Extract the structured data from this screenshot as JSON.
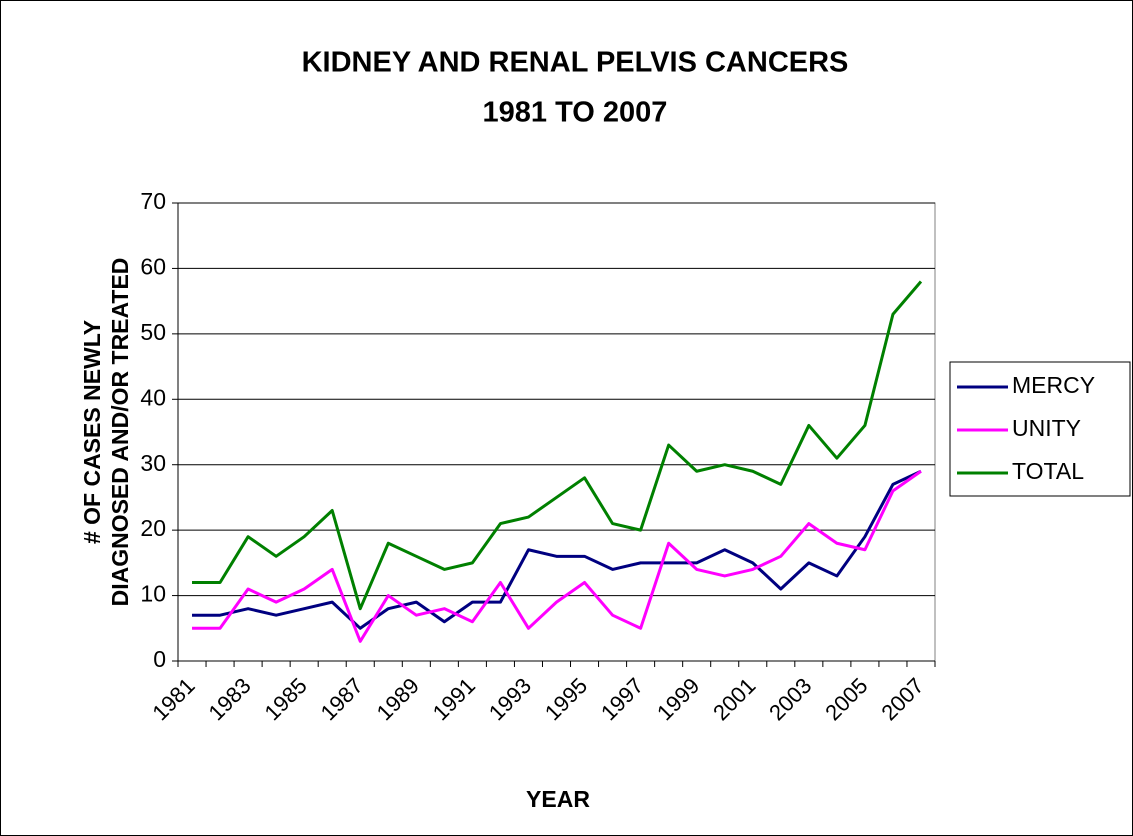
{
  "chart_data": {
    "type": "line",
    "title": "KIDNEY AND RENAL PELVIS CANCERS",
    "subtitle": "1981 TO 2007",
    "x_label": "YEAR",
    "y_label": [
      "# OF CASES NEWLY",
      "DIAGNOSED AND/OR TREATED"
    ],
    "categories": [
      "1981",
      null,
      "1983",
      null,
      "1985",
      null,
      "1987",
      null,
      "1989",
      null,
      "1991",
      null,
      "1993",
      null,
      "1995",
      null,
      "1997",
      null,
      "1999",
      null,
      "2001",
      null,
      "2003",
      null,
      "2005",
      null,
      "2007"
    ],
    "series": [
      {
        "name": "MERCY",
        "color": "#000080",
        "values": [
          7,
          7,
          8,
          7,
          8,
          9,
          5,
          8,
          9,
          6,
          9,
          9,
          17,
          16,
          16,
          14,
          15,
          15,
          15,
          17,
          15,
          11,
          15,
          13,
          19,
          27,
          29
        ]
      },
      {
        "name": "UNITY",
        "color": "#ff00ff",
        "values": [
          5,
          5,
          11,
          9,
          11,
          14,
          3,
          10,
          7,
          8,
          6,
          12,
          5,
          9,
          12,
          7,
          5,
          18,
          14,
          13,
          14,
          16,
          21,
          18,
          17,
          26,
          29
        ]
      },
      {
        "name": "TOTAL",
        "color": "#008000",
        "values": [
          12,
          12,
          19,
          16,
          19,
          23,
          8,
          18,
          16,
          14,
          15,
          21,
          22,
          25,
          28,
          21,
          20,
          33,
          29,
          30,
          29,
          27,
          36,
          31,
          36,
          53,
          58
        ]
      }
    ],
    "ylim": [
      0,
      70
    ],
    "yticks": [
      0,
      10,
      20,
      30,
      40,
      50,
      60,
      70
    ],
    "grid": true,
    "legend": "right"
  }
}
